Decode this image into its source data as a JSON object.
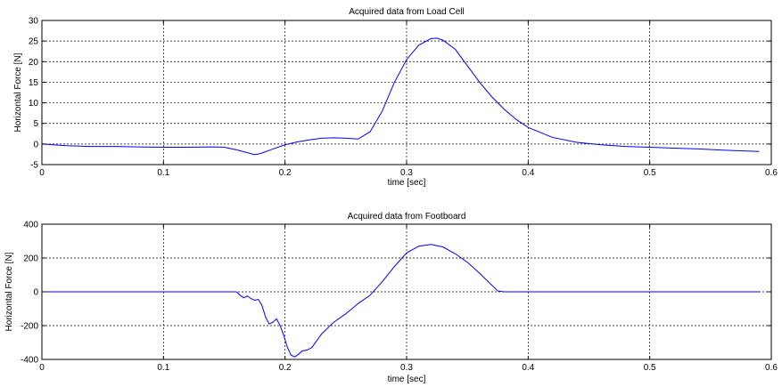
{
  "chart_data": [
    {
      "type": "line",
      "title": "Acquired data from Load Cell",
      "xlabel": "time [sec]",
      "ylabel": "Horizontal Force [N]",
      "xlim": [
        0,
        0.6
      ],
      "ylim": [
        -5,
        30
      ],
      "xticks": [
        0,
        0.1,
        0.2,
        0.3,
        0.4,
        0.5,
        0.6
      ],
      "yticks": [
        -5,
        0,
        5,
        10,
        15,
        20,
        25,
        30
      ],
      "xtick_labels": [
        "0",
        "0.1",
        "0.2",
        "0.3",
        "0.4",
        "0.5",
        "0.6"
      ],
      "ytick_labels": [
        "-5",
        "0",
        "5",
        "10",
        "15",
        "20",
        "25",
        "30"
      ],
      "grid": true,
      "line_color": "#0000ff",
      "series": [
        {
          "x": [
            0,
            0.02,
            0.04,
            0.06,
            0.08,
            0.1,
            0.12,
            0.14,
            0.15,
            0.16,
            0.17,
            0.175,
            0.18,
            0.19,
            0.2,
            0.21,
            0.22,
            0.23,
            0.24,
            0.25,
            0.26,
            0.27,
            0.28,
            0.29,
            0.3,
            0.31,
            0.32,
            0.325,
            0.33,
            0.34,
            0.35,
            0.36,
            0.37,
            0.38,
            0.39,
            0.4,
            0.42,
            0.44,
            0.46,
            0.48,
            0.5,
            0.52,
            0.54,
            0.56,
            0.58,
            0.59
          ],
          "y": [
            0,
            -0.4,
            -0.6,
            -0.6,
            -0.7,
            -0.8,
            -0.8,
            -0.7,
            -0.8,
            -1.4,
            -2.2,
            -2.6,
            -2.3,
            -1.2,
            -0.2,
            0.5,
            1.0,
            1.4,
            1.5,
            1.4,
            1.2,
            3.0,
            8.0,
            15.0,
            20.5,
            24.0,
            25.6,
            25.7,
            25.2,
            23.0,
            19.0,
            15.0,
            11.5,
            8.5,
            6.0,
            4.0,
            1.6,
            0.4,
            -0.2,
            -0.6,
            -0.8,
            -1.0,
            -1.2,
            -1.5,
            -1.7,
            -1.8
          ]
        }
      ]
    },
    {
      "type": "line",
      "title": "Acquired data from Footboard",
      "xlabel": "time [sec]",
      "ylabel": "Horizontal Force [N]",
      "xlim": [
        0,
        0.6
      ],
      "ylim": [
        -400,
        400
      ],
      "xticks": [
        0,
        0.1,
        0.2,
        0.3,
        0.4,
        0.5,
        0.6
      ],
      "yticks": [
        -400,
        -200,
        0,
        200,
        400
      ],
      "xtick_labels": [
        "0",
        "0.1",
        "0.2",
        "0.3",
        "0.4",
        "0.5",
        "0.6"
      ],
      "ytick_labels": [
        "-400",
        "-200",
        "0",
        "200",
        "400"
      ],
      "grid": true,
      "line_color": "#0000ff",
      "series": [
        {
          "x": [
            0,
            0.16,
            0.163,
            0.166,
            0.169,
            0.172,
            0.175,
            0.178,
            0.181,
            0.184,
            0.187,
            0.19,
            0.193,
            0.196,
            0.199,
            0.202,
            0.205,
            0.208,
            0.211,
            0.214,
            0.218,
            0.222,
            0.226,
            0.23,
            0.24,
            0.25,
            0.26,
            0.27,
            0.28,
            0.29,
            0.3,
            0.31,
            0.32,
            0.33,
            0.34,
            0.35,
            0.36,
            0.37,
            0.375,
            0.38,
            0.45,
            0.5,
            0.55,
            0.59
          ],
          "y": [
            0,
            0,
            -20,
            -35,
            -25,
            -40,
            -50,
            -45,
            -80,
            -150,
            -190,
            -180,
            -160,
            -200,
            -260,
            -330,
            -375,
            -385,
            -370,
            -350,
            -345,
            -330,
            -290,
            -250,
            -180,
            -130,
            -70,
            -20,
            60,
            150,
            230,
            270,
            280,
            265,
            225,
            175,
            110,
            40,
            5,
            0,
            0,
            0,
            0,
            0
          ]
        }
      ]
    }
  ]
}
